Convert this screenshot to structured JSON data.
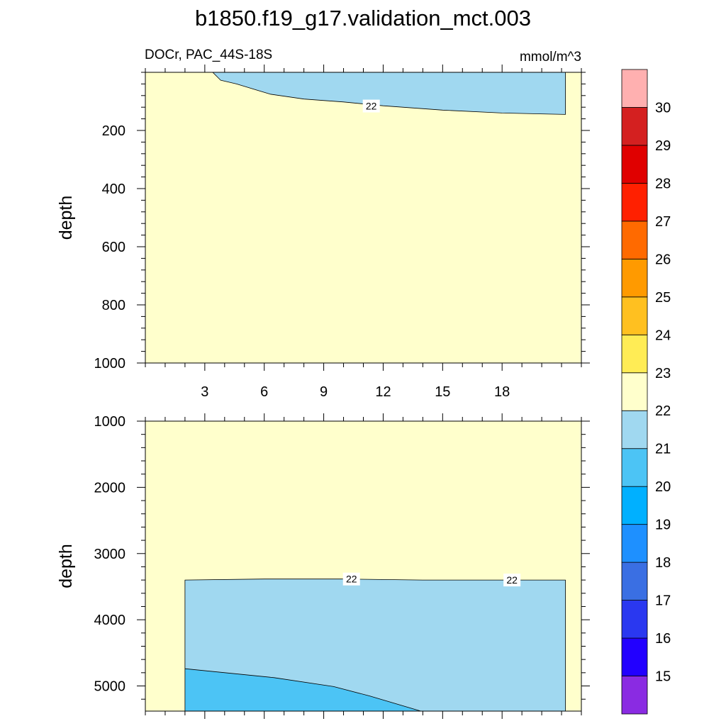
{
  "chart_data": {
    "type": "contour",
    "title": "b1850.f19_g17.validation_mct.003",
    "variable": "DOCr, PAC_44S-18S",
    "units": "mmol/m^3",
    "xlim": [
      0,
      22
    ],
    "x_ticks": [
      3,
      6,
      9,
      12,
      15,
      18
    ],
    "x_tick_labels": [
      "3",
      "6",
      "9",
      "12",
      "15",
      "18"
    ],
    "panels": [
      {
        "name": "upper",
        "ylabel": "depth",
        "ylim": [
          0,
          1000
        ],
        "y_ticks": [
          200,
          400,
          600,
          800,
          1000
        ],
        "y_tick_labels": [
          "200",
          "400",
          "600",
          "800",
          "1000"
        ],
        "background_level": "22-23",
        "regions": [
          {
            "level": "21-22",
            "boundary": [
              [
                2,
                0
              ],
              [
                3.4,
                0
              ],
              [
                3.8,
                27
              ],
              [
                4.6,
                40
              ],
              [
                6.3,
                75
              ],
              [
                8,
                92
              ],
              [
                10,
                102
              ],
              [
                12,
                115
              ],
              [
                15,
                130
              ],
              [
                18,
                140
              ],
              [
                21.2,
                145
              ],
              [
                21.2,
                0
              ],
              [
                2,
                0
              ]
            ]
          }
        ],
        "contour_labels": [
          {
            "text": "22",
            "x": 11.4,
            "y": 116
          }
        ]
      },
      {
        "name": "lower",
        "ylabel": "depth",
        "ylim": [
          1000,
          5380
        ],
        "y_ticks": [
          1000,
          2000,
          3000,
          4000,
          5000
        ],
        "y_tick_labels": [
          "1000",
          "2000",
          "3000",
          "4000",
          "5000"
        ],
        "background_level": "22-23",
        "regions": [
          {
            "level": "21-22",
            "boundary": [
              [
                2,
                3400
              ],
              [
                6,
                3385
              ],
              [
                10,
                3385
              ],
              [
                14,
                3400
              ],
              [
                18,
                3400
              ],
              [
                21.2,
                3400
              ],
              [
                21.2,
                5380
              ],
              [
                2,
                5380
              ],
              [
                2,
                3400
              ]
            ]
          },
          {
            "level": "20-21",
            "boundary": [
              [
                2,
                4740
              ],
              [
                6.5,
                4875
              ],
              [
                9.5,
                5010
              ],
              [
                11.3,
                5150
              ],
              [
                13.9,
                5380
              ],
              [
                2,
                5380
              ],
              [
                2,
                4740
              ]
            ]
          }
        ],
        "contour_labels": [
          {
            "text": "22",
            "x": 10.4,
            "y": 3385
          },
          {
            "text": "22",
            "x": 18.5,
            "y": 3400
          }
        ]
      }
    ],
    "colorbar": {
      "levels": [
        15,
        16,
        17,
        18,
        19,
        20,
        21,
        22,
        23,
        24,
        25,
        26,
        27,
        28,
        29,
        30
      ],
      "labels": [
        "15",
        "16",
        "17",
        "18",
        "19",
        "20",
        "21",
        "22",
        "23",
        "24",
        "25",
        "26",
        "27",
        "28",
        "29",
        "30"
      ],
      "colors": [
        "#8a2be2",
        "#2200ff",
        "#2a38f0",
        "#3a6fe3",
        "#1e90ff",
        "#00b0ff",
        "#4cc4f5",
        "#a0d8f0",
        "#ffffcc",
        "#ffec55",
        "#ffc020",
        "#ff9a00",
        "#ff6a00",
        "#ff2000",
        "#e00000",
        "#d42020",
        "#ffb0b0"
      ]
    }
  }
}
